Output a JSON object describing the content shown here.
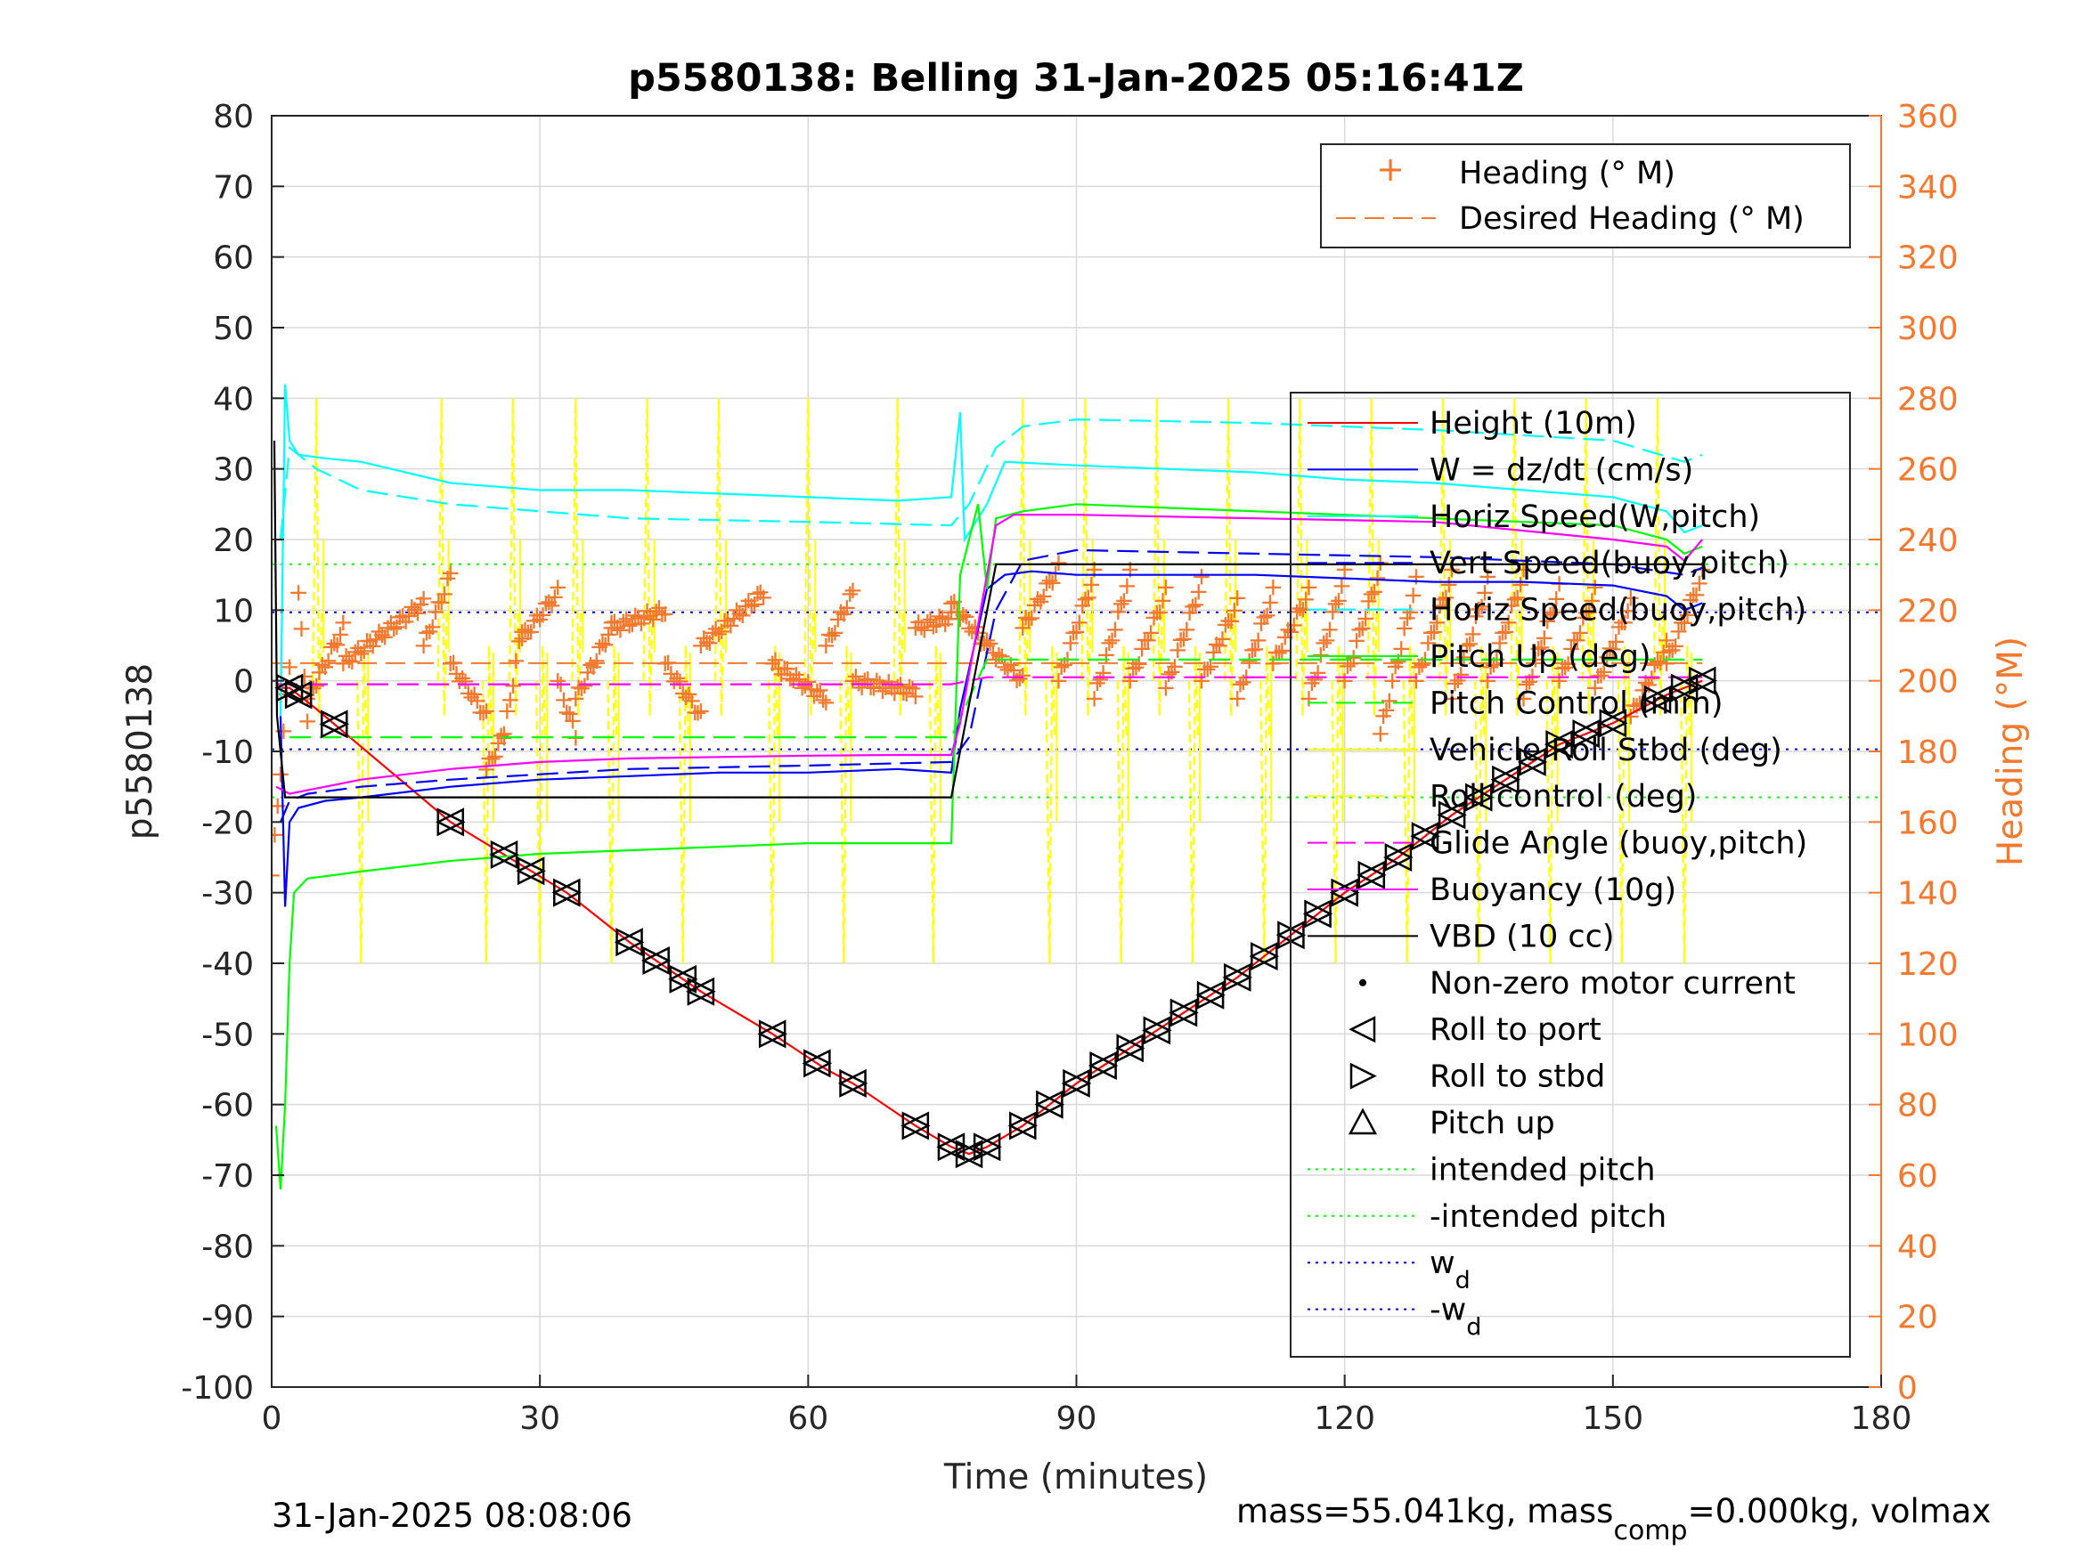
{
  "chart_data": {
    "type": "line",
    "title": "p5580138: Belling 31-Jan-2025 05:16:41Z",
    "xlabel": "Time (minutes)",
    "ylabel": "p5580138",
    "y2label": "Heading (°M)",
    "xlim": [
      0,
      180
    ],
    "ylim": [
      -100,
      80
    ],
    "y2lim": [
      0,
      360
    ],
    "xticks": [
      "0",
      "30",
      "60",
      "90",
      "120",
      "150",
      "180"
    ],
    "yticks": [
      "80",
      "70",
      "60",
      "50",
      "40",
      "30",
      "20",
      "10",
      "0",
      "-10",
      "-20",
      "-30",
      "-40",
      "-50",
      "-60",
      "-70",
      "-80",
      "-90",
      "-100"
    ],
    "y2ticks": [
      "360",
      "340",
      "320",
      "300",
      "280",
      "260",
      "240",
      "220",
      "200",
      "180",
      "160",
      "140",
      "120",
      "100",
      "80",
      "60",
      "40",
      "20",
      "0"
    ],
    "grid": true,
    "legend_top": {
      "placement": "top-right",
      "entries": [
        {
          "label": "Heading (° M)",
          "color": "#f5782c",
          "style": "plus"
        },
        {
          "label": "Desired Heading (° M)",
          "color": "#f5782c",
          "style": "dashed"
        }
      ]
    },
    "legend_main": {
      "placement": "right",
      "entries": [
        {
          "label": "Height (10m)",
          "color": "#ff0000",
          "style": "solid"
        },
        {
          "label": "W = dz/dt (cm/s)",
          "color": "#0000ff",
          "style": "solid"
        },
        {
          "label": "Horiz Speed(W,pitch)",
          "color": "#00ffff",
          "style": "solid"
        },
        {
          "label": "Vert Speed(buoy,pitch)",
          "color": "#0000ff",
          "style": "dashed"
        },
        {
          "label": "Horiz Speed(buoy,pitch)",
          "color": "#00ffff",
          "style": "dashed"
        },
        {
          "label": "Pitch Up (deg)",
          "color": "#00ff00",
          "style": "solid"
        },
        {
          "label": "Pitch Control (mm)",
          "color": "#00ff00",
          "style": "dashed"
        },
        {
          "label": "Vehicle Roll Stbd (deg)",
          "color": "#ffff00",
          "style": "solid"
        },
        {
          "label": "Roll control (deg)",
          "color": "#ffff00",
          "style": "dashed"
        },
        {
          "label": "Glide Angle (buoy,pitch)",
          "color": "#ff00ff",
          "style": "dashed"
        },
        {
          "label": "Buoyancy (10g)",
          "color": "#ff00ff",
          "style": "solid"
        },
        {
          "label": "VBD (10 cc)",
          "color": "#000000",
          "style": "solid"
        },
        {
          "label": "Non-zero motor current",
          "color": "#000000",
          "style": "dot"
        },
        {
          "label": "Roll to port",
          "color": "#000000",
          "style": "tri-left"
        },
        {
          "label": "Roll to stbd",
          "color": "#000000",
          "style": "tri-right"
        },
        {
          "label": "Pitch up",
          "color": "#000000",
          "style": "tri-up"
        },
        {
          "label": "intended pitch",
          "color": "#00ff00",
          "style": "dotted"
        },
        {
          "label": "-intended pitch",
          "color": "#00ff00",
          "style": "dotted"
        },
        {
          "label": "w",
          "sub": "d",
          "color": "#0000ff",
          "style": "dotted"
        },
        {
          "label": "-w",
          "sub": "d",
          "color": "#0000ff",
          "style": "dotted"
        }
      ]
    },
    "series": [
      {
        "name": "Height (10m)",
        "color": "#ff0000",
        "style": "solid",
        "x": [
          0.5,
          2,
          5,
          20,
          33,
          40,
          48,
          56,
          62,
          65,
          72,
          76,
          78,
          80,
          84,
          90,
          96,
          102,
          108,
          114,
          120,
          126,
          132,
          138,
          144,
          150,
          156,
          160
        ],
        "y": [
          -1,
          -1,
          -4,
          -20,
          -30,
          -37,
          -44,
          -50,
          -55,
          -57,
          -63,
          -66,
          -67,
          -66,
          -63,
          -57,
          -52,
          -47,
          -42,
          -36,
          -30,
          -25,
          -19,
          -14,
          -9,
          -6,
          -2,
          0
        ]
      },
      {
        "name": "W = dz/dt (cm/s)",
        "color": "#0000ff",
        "style": "solid",
        "x": [
          1,
          1.5,
          2,
          3,
          6,
          10,
          20,
          30,
          40,
          50,
          60,
          70,
          76,
          77,
          80,
          82,
          85,
          90,
          100,
          110,
          120,
          130,
          140,
          150,
          156,
          158,
          160
        ],
        "y": [
          -5,
          -32,
          -20,
          -18,
          -17,
          -16.5,
          -15,
          -14,
          -13.5,
          -13,
          -13,
          -12.5,
          -13,
          -4,
          13,
          15,
          15.5,
          15,
          15,
          15,
          14.5,
          14,
          14,
          13.5,
          12,
          10,
          11
        ]
      },
      {
        "name": "Horiz Speed(W,pitch)",
        "color": "#00ffff",
        "style": "solid",
        "x": [
          1,
          1.5,
          2,
          3,
          6,
          10,
          20,
          30,
          40,
          50,
          60,
          70,
          76,
          77,
          77.5,
          80,
          82,
          90,
          100,
          110,
          120,
          130,
          140,
          150,
          156,
          158,
          160
        ],
        "y": [
          -5,
          42,
          34,
          32,
          31.5,
          31,
          28,
          27,
          27,
          26.5,
          26,
          25.5,
          26,
          38,
          20,
          25,
          31,
          30.5,
          30,
          29.5,
          28.5,
          28,
          27,
          26,
          24,
          21,
          22
        ]
      },
      {
        "name": "Vert Speed(buoy,pitch)",
        "color": "#0000ff",
        "style": "dashed",
        "x": [
          1,
          2,
          4,
          10,
          20,
          40,
          60,
          76,
          78,
          81,
          84,
          90,
          110,
          130,
          150,
          158,
          160
        ],
        "y": [
          -20,
          -17,
          -16,
          -15,
          -14,
          -12.5,
          -12,
          -11.5,
          -8,
          10,
          17,
          18.5,
          18,
          17.5,
          16.5,
          15,
          16
        ]
      },
      {
        "name": "Horiz Speed(buoy,pitch)",
        "color": "#00ffff",
        "style": "dashed",
        "x": [
          1,
          2,
          5,
          10,
          20,
          30,
          40,
          60,
          76,
          78,
          81,
          84,
          90,
          110,
          130,
          150,
          158,
          160
        ],
        "y": [
          20,
          33,
          30,
          27,
          25,
          24,
          23,
          22.5,
          22,
          25,
          33,
          36,
          37,
          36.5,
          35.5,
          34,
          31,
          32
        ]
      },
      {
        "name": "Pitch Up (deg)",
        "color": "#00ff00",
        "style": "solid",
        "x": [
          0.5,
          1,
          1.5,
          2,
          2.5,
          4,
          10,
          20,
          30,
          40,
          50,
          60,
          70,
          76,
          77,
          79,
          80,
          81,
          84,
          90,
          110,
          130,
          150,
          156,
          158,
          160
        ],
        "y": [
          -63,
          -72,
          -60,
          -40,
          -30,
          -28,
          -27,
          -25.5,
          -24.5,
          -24,
          -23.5,
          -23,
          -23,
          -23,
          15,
          25,
          13,
          23,
          24,
          25,
          24,
          23,
          22,
          20,
          18,
          19
        ]
      },
      {
        "name": "Pitch Control (mm)",
        "color": "#00ff00",
        "style": "dashed",
        "x": [
          2,
          76,
          80,
          160
        ],
        "y": [
          -8,
          -8,
          3,
          3
        ]
      },
      {
        "name": "Buoyancy (10g)",
        "color": "#ff00ff",
        "style": "solid",
        "x": [
          0.5,
          2,
          4,
          10,
          20,
          30,
          40,
          50,
          60,
          70,
          76,
          77,
          79,
          81,
          83,
          90,
          110,
          130,
          150,
          156,
          158,
          160
        ],
        "y": [
          -15,
          -16,
          -15.5,
          -14,
          -12.5,
          -11.5,
          -11,
          -10.8,
          -10.6,
          -10.5,
          -10.5,
          -6,
          8,
          22,
          23.5,
          23.5,
          23,
          22.5,
          20,
          19,
          17,
          20
        ]
      },
      {
        "name": "Glide Angle (buoy,pitch)",
        "color": "#ff00ff",
        "style": "dashed",
        "x": [
          0.5,
          76,
          80,
          160
        ],
        "y": [
          -0.5,
          -0.5,
          0.5,
          0.5
        ]
      },
      {
        "name": "VBD (10 cc)",
        "color": "#000000",
        "style": "solid",
        "x": [
          0.3,
          0.6,
          1.5,
          76,
          81,
          160
        ],
        "y": [
          34,
          -5,
          -16.5,
          -16.5,
          16.5,
          16.5
        ]
      }
    ],
    "reference_lines": [
      {
        "name": "intended pitch",
        "color": "#00ff00",
        "y": 16.5
      },
      {
        "name": "-intended pitch",
        "color": "#00ff00",
        "y": -16.5
      },
      {
        "name": "w_d",
        "color": "#0000ff",
        "y": 9.7
      },
      {
        "name": "-w_d",
        "color": "#0000ff",
        "y": -9.7
      }
    ],
    "roll_events_x": [
      5,
      10,
      19,
      24,
      27,
      30,
      34,
      38,
      42,
      46,
      50,
      56,
      60,
      64,
      70,
      74,
      84,
      87,
      91,
      95,
      99,
      103,
      107,
      111,
      115,
      119,
      123,
      127,
      131,
      135,
      139,
      143,
      147,
      151,
      155,
      158
    ],
    "roll_markers_x": [
      2,
      3,
      7,
      20,
      26,
      29,
      33,
      40,
      43,
      46,
      48,
      56,
      61,
      65,
      72,
      76,
      78,
      80,
      84,
      87,
      90,
      93,
      96,
      99,
      102,
      105,
      108,
      111,
      114,
      117,
      120,
      123,
      126,
      129,
      132,
      135,
      138,
      141,
      144,
      147,
      150,
      155,
      158,
      160
    ],
    "heading_desired": 205,
    "heading_segments": [
      {
        "x0": 0,
        "x1": 2,
        "h0": 145,
        "h1": 205
      },
      {
        "x0": 3,
        "x1": 4,
        "h0": 225,
        "h1": 190
      },
      {
        "x0": 4,
        "x1": 8,
        "h0": 195,
        "h1": 215
      },
      {
        "x0": 8,
        "x1": 17,
        "h0": 205,
        "h1": 222
      },
      {
        "x0": 17,
        "x1": 20,
        "h0": 210,
        "h1": 230
      },
      {
        "x0": 20,
        "x1": 24,
        "h0": 205,
        "h1": 190
      },
      {
        "x0": 24,
        "x1": 26,
        "h0": 175,
        "h1": 185
      },
      {
        "x0": 26,
        "x1": 28,
        "h0": 185,
        "h1": 215
      },
      {
        "x0": 28,
        "x1": 32,
        "h0": 212,
        "h1": 225
      },
      {
        "x0": 32,
        "x1": 34,
        "h0": 200,
        "h1": 185
      },
      {
        "x0": 34,
        "x1": 38,
        "h0": 195,
        "h1": 215
      },
      {
        "x0": 38,
        "x1": 44,
        "h0": 215,
        "h1": 220
      },
      {
        "x0": 44,
        "x1": 48,
        "h0": 205,
        "h1": 190
      },
      {
        "x0": 48,
        "x1": 55,
        "h0": 210,
        "h1": 225
      },
      {
        "x0": 56,
        "x1": 62,
        "h0": 205,
        "h1": 195
      },
      {
        "x0": 62,
        "x1": 65,
        "h0": 210,
        "h1": 225
      },
      {
        "x0": 65,
        "x1": 72,
        "h0": 200,
        "h1": 197
      },
      {
        "x0": 72,
        "x1": 76,
        "h0": 215,
        "h1": 218
      },
      {
        "x0": 76,
        "x1": 80,
        "h0": 222,
        "h1": 210
      },
      {
        "x0": 80,
        "x1": 84,
        "h0": 210,
        "h1": 200
      },
      {
        "x0": 84,
        "x1": 88,
        "h0": 215,
        "h1": 232
      },
      {
        "x0": 88,
        "x1": 92,
        "h0": 200,
        "h1": 230
      },
      {
        "x0": 92,
        "x1": 96,
        "h0": 195,
        "h1": 230
      },
      {
        "x0": 96,
        "x1": 100,
        "h0": 200,
        "h1": 225
      },
      {
        "x0": 100,
        "x1": 104,
        "h0": 198,
        "h1": 228
      },
      {
        "x0": 104,
        "x1": 108,
        "h0": 200,
        "h1": 222
      },
      {
        "x0": 108,
        "x1": 112,
        "h0": 195,
        "h1": 225
      },
      {
        "x0": 112,
        "x1": 116,
        "h0": 205,
        "h1": 225
      },
      {
        "x0": 116,
        "x1": 120,
        "h0": 195,
        "h1": 230
      },
      {
        "x0": 120,
        "x1": 124,
        "h0": 200,
        "h1": 232
      },
      {
        "x0": 124,
        "x1": 128,
        "h0": 185,
        "h1": 228
      },
      {
        "x0": 128,
        "x1": 132,
        "h0": 200,
        "h1": 230
      },
      {
        "x0": 132,
        "x1": 136,
        "h0": 195,
        "h1": 228
      },
      {
        "x0": 136,
        "x1": 140,
        "h0": 200,
        "h1": 230
      },
      {
        "x0": 140,
        "x1": 144,
        "h0": 195,
        "h1": 226
      },
      {
        "x0": 144,
        "x1": 148,
        "h0": 200,
        "h1": 225
      },
      {
        "x0": 148,
        "x1": 152,
        "h0": 198,
        "h1": 222
      },
      {
        "x0": 152,
        "x1": 156,
        "h0": 190,
        "h1": 210
      },
      {
        "x0": 156,
        "x1": 160,
        "h0": 205,
        "h1": 230
      }
    ],
    "footer_left": "31-Jan-2025 08:08:06",
    "footer_right": {
      "prefix": "mass=55.041kg, mass",
      "sub": "comp",
      "suffix": "=0.000kg, volmax"
    }
  }
}
